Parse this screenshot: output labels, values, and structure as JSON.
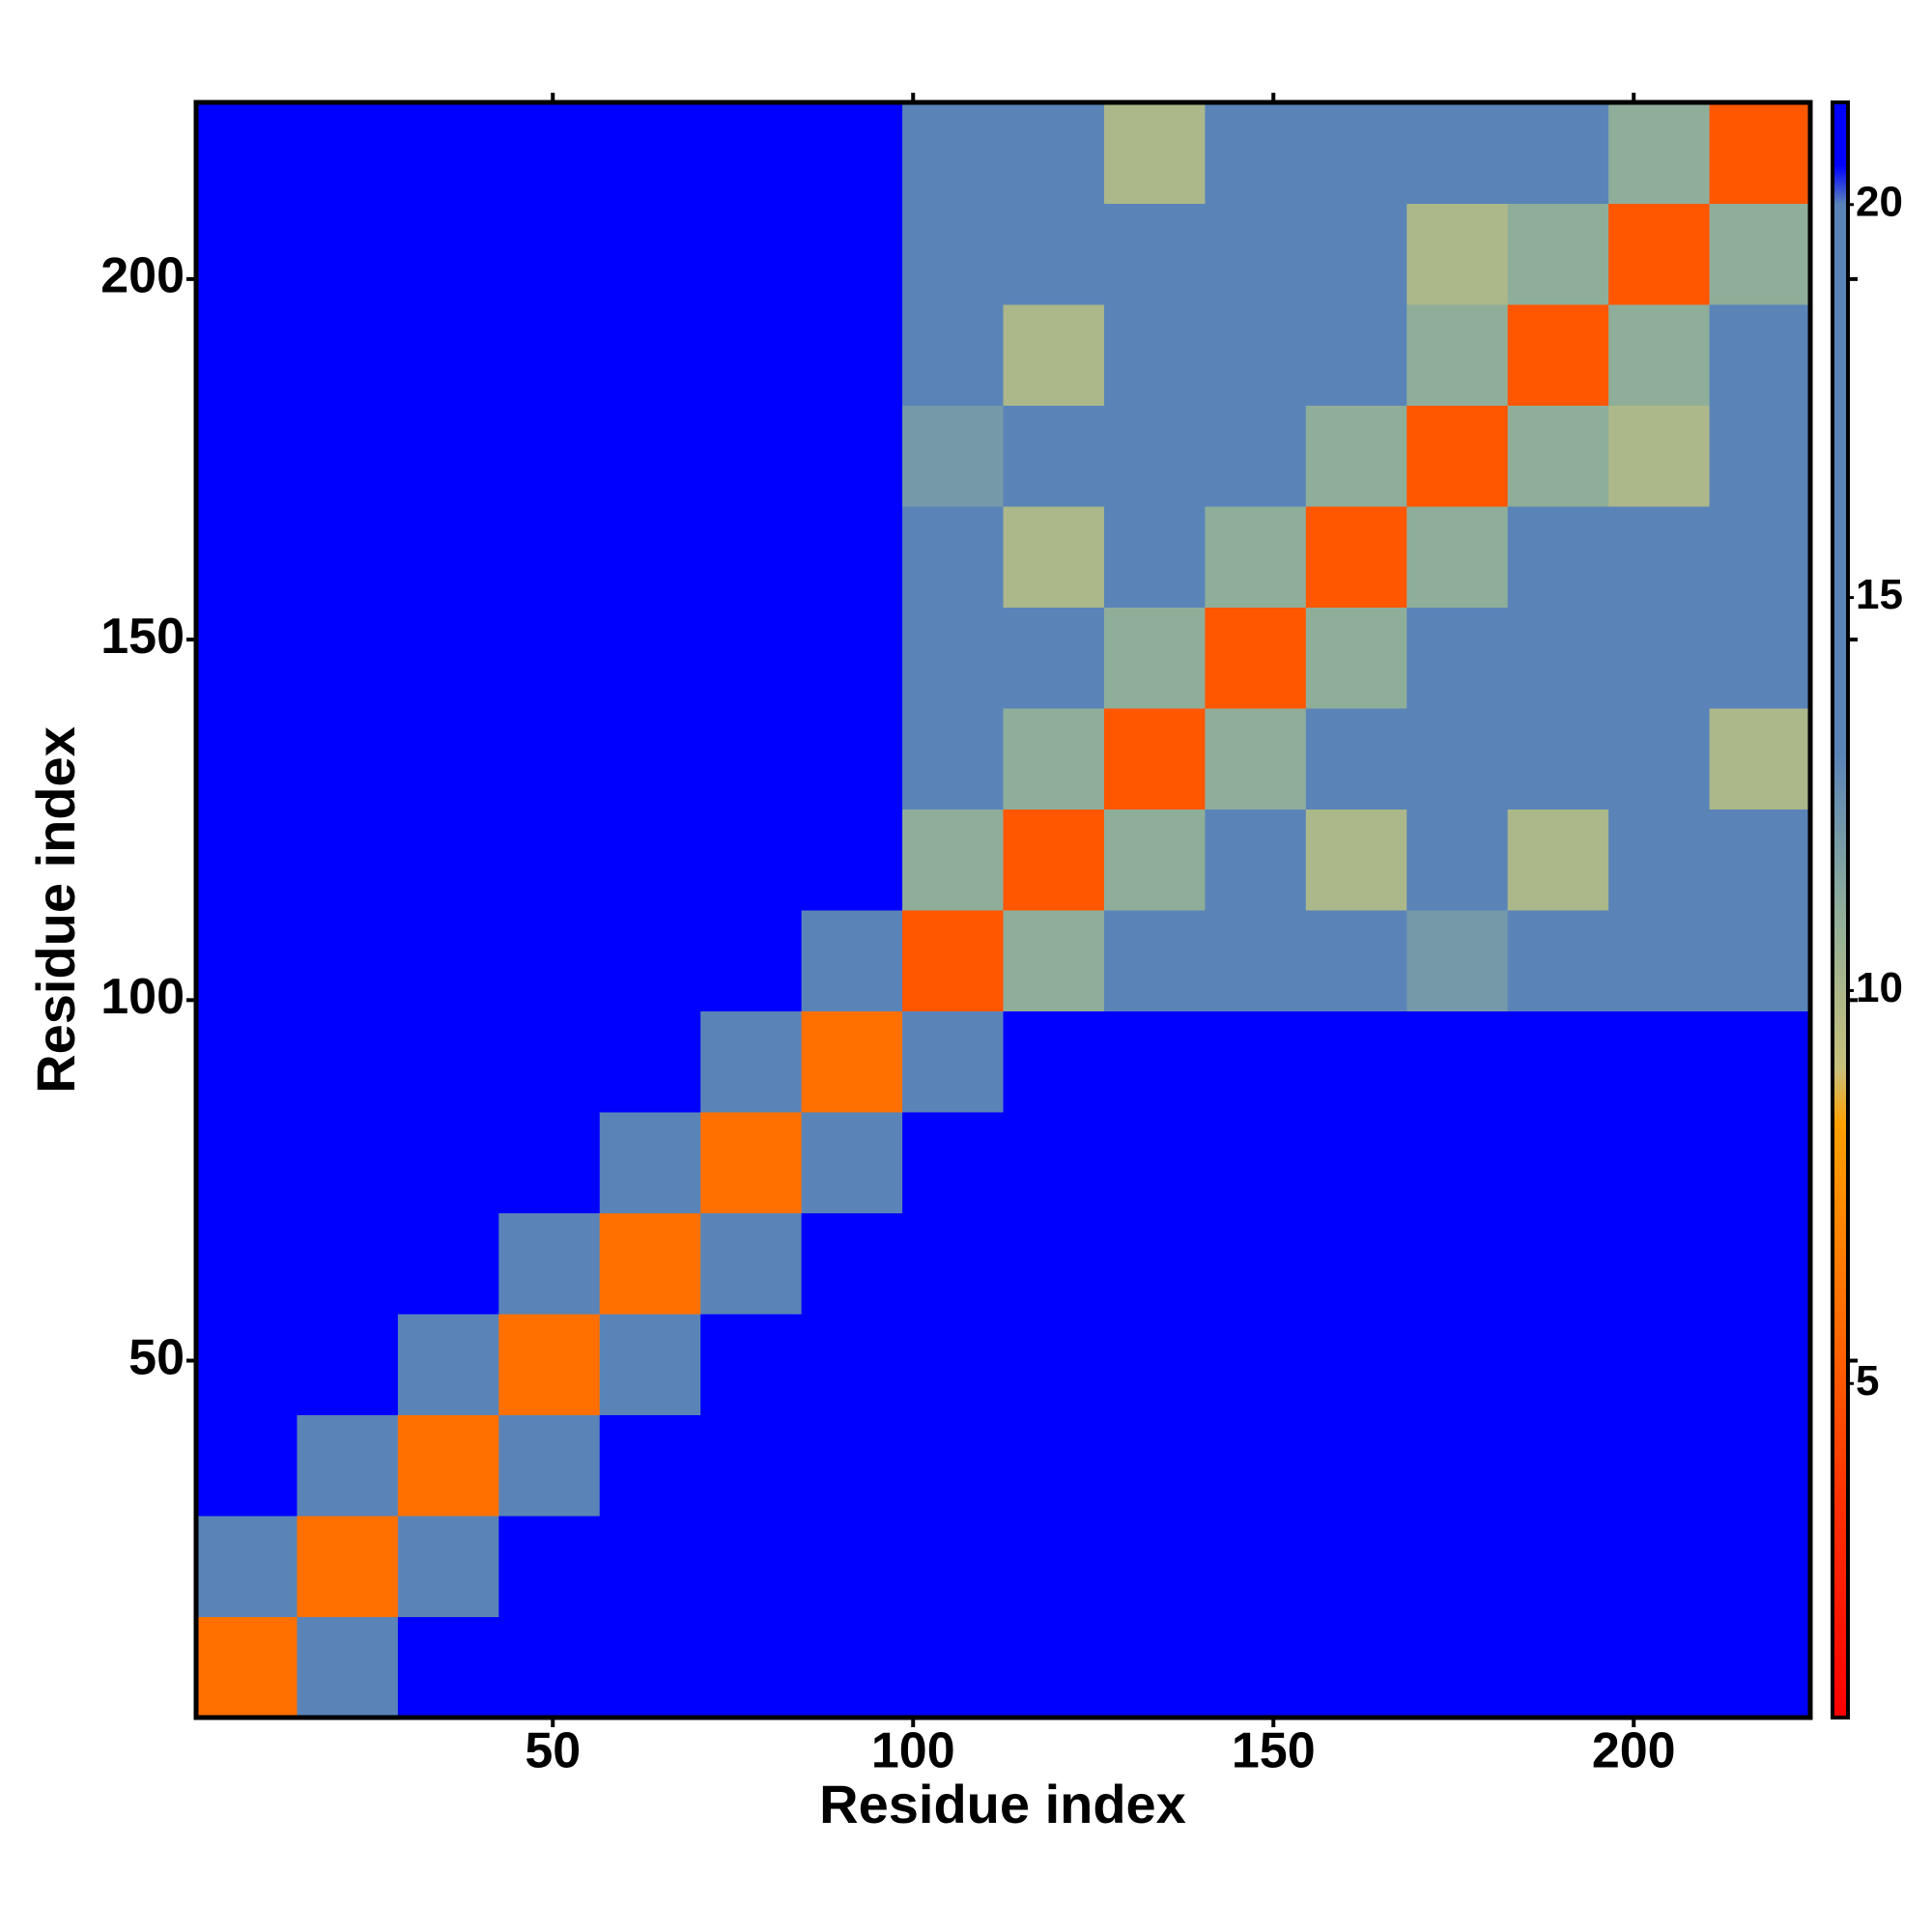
{
  "chart_data": {
    "type": "heatmap",
    "x_label": "Residue index",
    "y_label": "Residue index",
    "xlim": [
      0.5,
      224.5
    ],
    "ylim": [
      0.5,
      224.5
    ],
    "xticks": [
      50,
      100,
      150,
      200
    ],
    "yticks": [
      50,
      100,
      150,
      200
    ],
    "x_edges": [
      0.5,
      14.5,
      28.5,
      42.5,
      56.5,
      70.5,
      84.5,
      98.5,
      112.5,
      126.5,
      140.5,
      154.5,
      168.5,
      182.5,
      196.5,
      210.5,
      224.5
    ],
    "y_edges": [
      0.5,
      14.5,
      28.5,
      42.5,
      56.5,
      70.5,
      84.5,
      98.5,
      112.5,
      126.5,
      140.5,
      154.5,
      168.5,
      182.5,
      196.5,
      210.5,
      224.5
    ],
    "z": [
      [
        6,
        16,
        21,
        21,
        21,
        21,
        21,
        21,
        21,
        21,
        21,
        21,
        21,
        21,
        21,
        21
      ],
      [
        16,
        6,
        13,
        21,
        21,
        21,
        21,
        21,
        21,
        21,
        21,
        21,
        21,
        21,
        21,
        21
      ],
      [
        21,
        13,
        6,
        14,
        21,
        21,
        21,
        21,
        21,
        21,
        21,
        21,
        21,
        21,
        21,
        21
      ],
      [
        21,
        21,
        14,
        6,
        13,
        21,
        21,
        21,
        21,
        21,
        21,
        21,
        21,
        21,
        21,
        21
      ],
      [
        21,
        21,
        21,
        13,
        6,
        15,
        21,
        21,
        21,
        21,
        21,
        21,
        21,
        21,
        21,
        21
      ],
      [
        21,
        21,
        21,
        21,
        15,
        6,
        17,
        21,
        21,
        21,
        21,
        21,
        21,
        21,
        21,
        21
      ],
      [
        21,
        21,
        21,
        21,
        21,
        17,
        6,
        19,
        21,
        21,
        21,
        21,
        21,
        21,
        21,
        21
      ],
      [
        21,
        21,
        21,
        21,
        21,
        21,
        19,
        5,
        11,
        17,
        17,
        17,
        12,
        17,
        17,
        17
      ],
      [
        21,
        21,
        21,
        21,
        21,
        21,
        21,
        11,
        5,
        11,
        19,
        10,
        15,
        10,
        19,
        15
      ],
      [
        21,
        21,
        21,
        21,
        21,
        21,
        21,
        17,
        11,
        5,
        11,
        15,
        15,
        15,
        15,
        10
      ],
      [
        21,
        21,
        21,
        21,
        21,
        21,
        21,
        17,
        19,
        11,
        5,
        11,
        15,
        15,
        19,
        15
      ],
      [
        21,
        21,
        21,
        21,
        21,
        21,
        21,
        17,
        10,
        15,
        11,
        5,
        11,
        15,
        15,
        15
      ],
      [
        21,
        21,
        21,
        21,
        21,
        21,
        21,
        12,
        15,
        15,
        15,
        11,
        5,
        11,
        10,
        15
      ],
      [
        21,
        21,
        21,
        21,
        21,
        21,
        21,
        17,
        10,
        15,
        15,
        15,
        11,
        5,
        11,
        15
      ],
      [
        21,
        21,
        21,
        21,
        21,
        21,
        21,
        17,
        19,
        15,
        19,
        15,
        10,
        11,
        5,
        11
      ],
      [
        21,
        21,
        21,
        21,
        21,
        21,
        21,
        17,
        15,
        10,
        15,
        15,
        15,
        15,
        11,
        5
      ]
    ],
    "colorbar": {
      "zlim": [
        0.75,
        21.3
      ],
      "zticks": [
        5,
        10,
        15,
        20
      ],
      "stops": [
        {
          "value": 0.75,
          "color": "#ff0000"
        },
        {
          "value": 3.5,
          "color": "#ff3000"
        },
        {
          "value": 6,
          "color": "#ff7000"
        },
        {
          "value": 8.3,
          "color": "#ffa000"
        },
        {
          "value": 9,
          "color": "#c8c07a"
        },
        {
          "value": 11,
          "color": "#8fae9a"
        },
        {
          "value": 13,
          "color": "#5a84b8"
        },
        {
          "value": 20,
          "color": "#5a84b8"
        },
        {
          "value": 20.5,
          "color": "#0000ff"
        },
        {
          "value": 21.3,
          "color": "#0000ff"
        }
      ]
    }
  }
}
